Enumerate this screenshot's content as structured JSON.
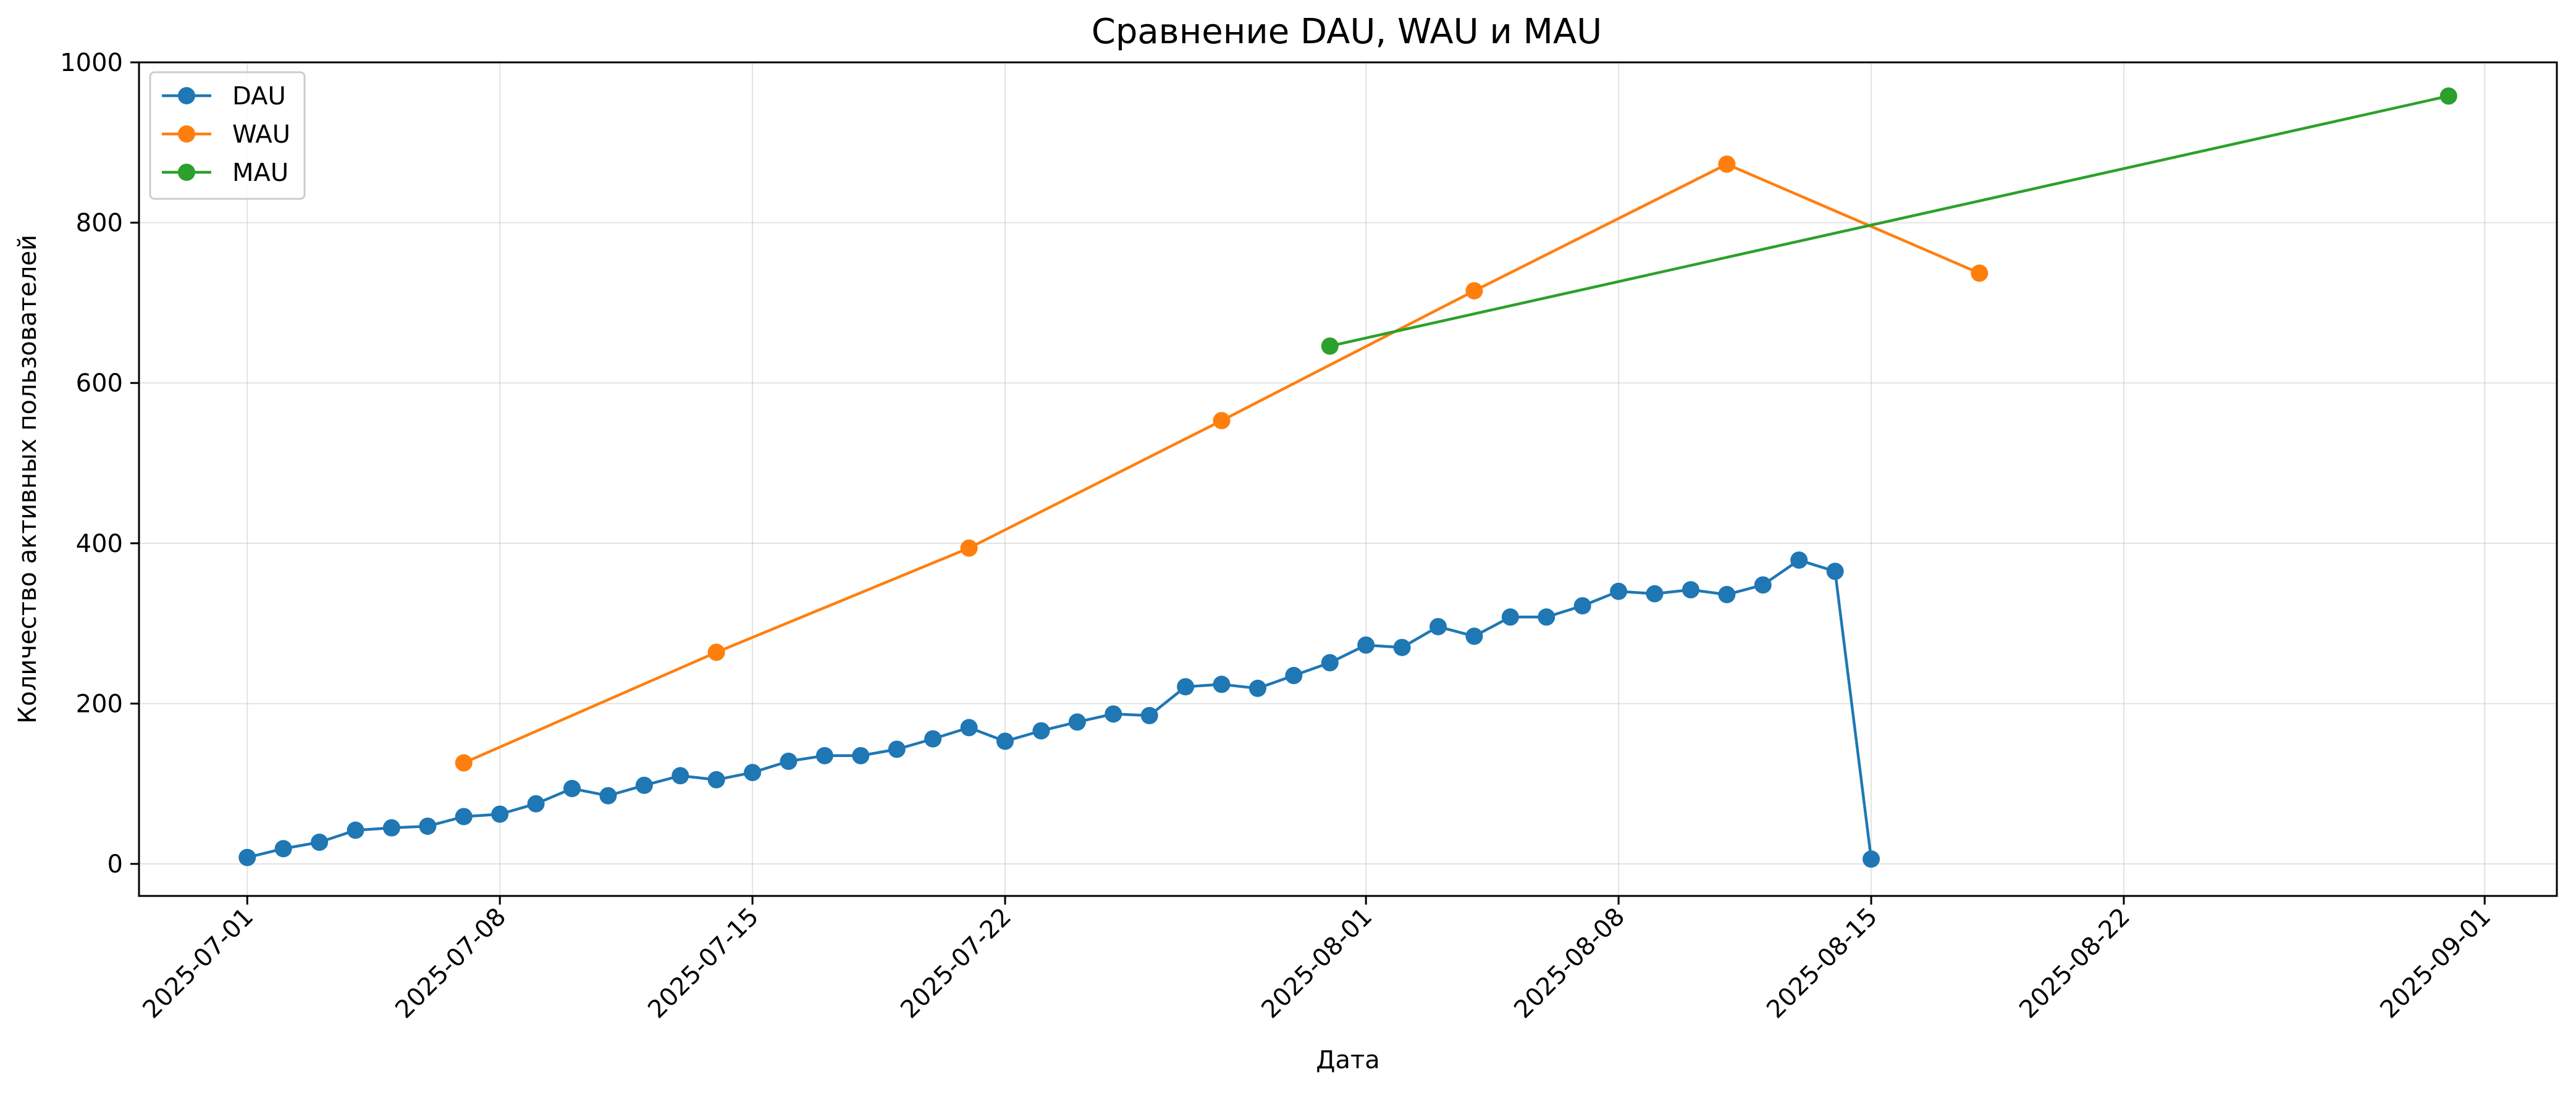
{
  "chart_data": {
    "type": "line",
    "title": "Сравнение DAU, WAU и MAU",
    "xlabel": "Дата",
    "ylabel": "Количество активных пользователей",
    "x_type": "date",
    "xlim": [
      "2025-06-28",
      "2025-09-03"
    ],
    "ylim": [
      -40,
      1000
    ],
    "x_ticks": [
      "2025-07-01",
      "2025-07-08",
      "2025-07-15",
      "2025-07-22",
      "2025-08-01",
      "2025-08-08",
      "2025-08-15",
      "2025-08-22",
      "2025-09-01"
    ],
    "y_ticks": [
      0,
      200,
      400,
      600,
      800,
      1000
    ],
    "grid": true,
    "legend": "top-left",
    "series": [
      {
        "name": "DAU",
        "color": "#1f77b4",
        "points": [
          [
            "2025-07-01",
            8
          ],
          [
            "2025-07-02",
            19
          ],
          [
            "2025-07-03",
            27
          ],
          [
            "2025-07-04",
            42
          ],
          [
            "2025-07-05",
            45
          ],
          [
            "2025-07-06",
            47
          ],
          [
            "2025-07-07",
            59
          ],
          [
            "2025-07-08",
            62
          ],
          [
            "2025-07-09",
            75
          ],
          [
            "2025-07-10",
            94
          ],
          [
            "2025-07-11",
            85
          ],
          [
            "2025-07-12",
            98
          ],
          [
            "2025-07-13",
            110
          ],
          [
            "2025-07-14",
            105
          ],
          [
            "2025-07-15",
            114
          ],
          [
            "2025-07-16",
            128
          ],
          [
            "2025-07-17",
            135
          ],
          [
            "2025-07-18",
            135
          ],
          [
            "2025-07-19",
            143
          ],
          [
            "2025-07-20",
            156
          ],
          [
            "2025-07-21",
            170
          ],
          [
            "2025-07-22",
            153
          ],
          [
            "2025-07-23",
            166
          ],
          [
            "2025-07-24",
            177
          ],
          [
            "2025-07-25",
            187
          ],
          [
            "2025-07-26",
            185
          ],
          [
            "2025-07-27",
            221
          ],
          [
            "2025-07-28",
            224
          ],
          [
            "2025-07-29",
            219
          ],
          [
            "2025-07-30",
            235
          ],
          [
            "2025-07-31",
            251
          ],
          [
            "2025-08-01",
            273
          ],
          [
            "2025-08-02",
            270
          ],
          [
            "2025-08-03",
            296
          ],
          [
            "2025-08-04",
            284
          ],
          [
            "2025-08-05",
            308
          ],
          [
            "2025-08-06",
            308
          ],
          [
            "2025-08-07",
            322
          ],
          [
            "2025-08-08",
            340
          ],
          [
            "2025-08-09",
            337
          ],
          [
            "2025-08-10",
            342
          ],
          [
            "2025-08-11",
            336
          ],
          [
            "2025-08-12",
            348
          ],
          [
            "2025-08-13",
            379
          ],
          [
            "2025-08-14",
            365
          ],
          [
            "2025-08-15",
            6
          ]
        ]
      },
      {
        "name": "WAU",
        "color": "#ff7f0e",
        "points": [
          [
            "2025-07-07",
            126
          ],
          [
            "2025-07-14",
            264
          ],
          [
            "2025-07-21",
            394
          ],
          [
            "2025-07-28",
            553
          ],
          [
            "2025-08-04",
            715
          ],
          [
            "2025-08-11",
            873
          ],
          [
            "2025-08-18",
            737
          ]
        ]
      },
      {
        "name": "MAU",
        "color": "#2ca02c",
        "points": [
          [
            "2025-07-31",
            646
          ],
          [
            "2025-08-31",
            958
          ]
        ]
      }
    ]
  }
}
